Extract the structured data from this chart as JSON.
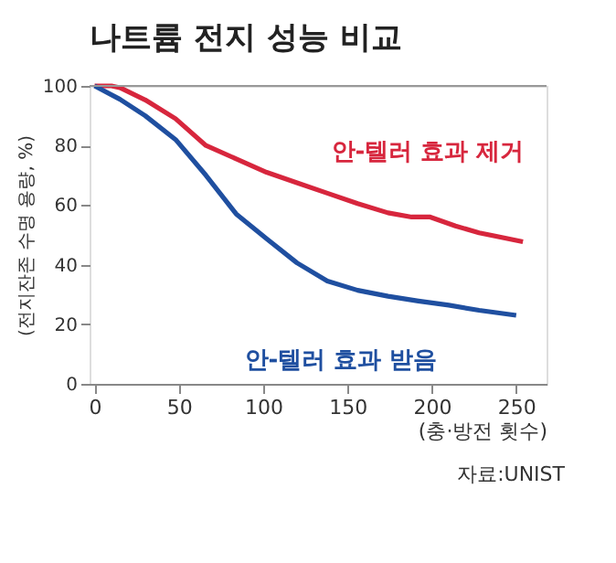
{
  "chart_data": {
    "type": "line",
    "title": "나트륨 전지 성능 비교",
    "ylabel": "(전지잔존 수명 용량, %)",
    "xlabel": "(충·방전 횟수)",
    "annotations": [
      "자료:UNIST"
    ],
    "xlim": [
      -3,
      268
    ],
    "xticks": [
      0,
      50,
      100,
      150,
      200,
      250
    ],
    "ylim": [
      0,
      100
    ],
    "yticks": [
      0,
      20,
      40,
      60,
      80,
      100
    ],
    "grid": false,
    "legend": false,
    "marker": "none",
    "line_style": "solid",
    "ref_lines": [
      {
        "axis": "y",
        "value": 100,
        "color": "#999999"
      }
    ],
    "series": [
      {
        "name": "안-텔러 효과 제거",
        "color": "#d7263d",
        "x": [
          0,
          10,
          15,
          30,
          48,
          66,
          84,
          102,
          120,
          138,
          156,
          174,
          188,
          199,
          214,
          228,
          254
        ],
        "values": [
          100,
          100,
          99.4,
          95.3,
          89,
          80,
          75.5,
          71,
          67.5,
          64,
          60.5,
          57.4,
          56,
          56,
          53,
          50.7,
          47.7
        ]
      },
      {
        "name": "안-텔러 효과 받음",
        "color": "#1f4fa0",
        "x": [
          0,
          15,
          30,
          48,
          66,
          84,
          102,
          120,
          138,
          156,
          174,
          192,
          210,
          228,
          250
        ],
        "values": [
          100,
          95.5,
          90,
          82,
          70,
          57,
          48.7,
          40.6,
          34.5,
          31.4,
          29.4,
          27.8,
          26.4,
          24.7,
          23
        ]
      }
    ]
  }
}
